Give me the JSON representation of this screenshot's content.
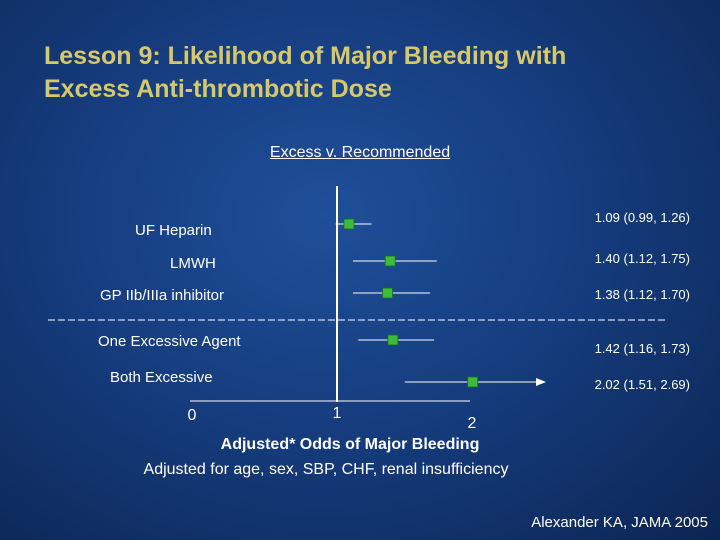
{
  "slide": {
    "title_line1": "Lesson 9:  Likelihood of Major Bleeding with",
    "title_line2": "Excess Anti-thrombotic Dose",
    "source": "Alexander KA, JAMA 2005"
  },
  "chart_data": {
    "type": "forest",
    "title": "Excess v. Recommended",
    "xlabel": "Adjusted* Odds of Major Bleeding",
    "footnote": "Adjusted for age, sex, SBP, CHF, renal insufficiency",
    "xlim": [
      0,
      2
    ],
    "ticks": [
      {
        "value": 0,
        "label": "0"
      },
      {
        "value": 1,
        "label": "1"
      },
      {
        "value": 2,
        "label": "2"
      }
    ],
    "reference_line": 1,
    "rows": [
      {
        "label": "UF Heparin",
        "or": 1.09,
        "low": 0.99,
        "high": 1.26,
        "ci_text": "1.09 (0.99, 1.26)"
      },
      {
        "label": "LMWH",
        "or": 1.4,
        "low": 1.12,
        "high": 1.75,
        "ci_text": "1.40 (1.12, 1.75)"
      },
      {
        "label": "GP IIb/IIIa inhibitor",
        "or": 1.38,
        "low": 1.12,
        "high": 1.7,
        "ci_text": "1.38 (1.12, 1.70)"
      },
      {
        "label": "One Excessive Agent",
        "or": 1.42,
        "low": 1.16,
        "high": 1.73,
        "ci_text": "1.42 (1.16, 1.73)"
      },
      {
        "label": "Both Excessive",
        "or": 2.02,
        "low": 1.51,
        "high": 2.69,
        "ci_text": "2.02 (1.51, 2.69)",
        "arrow": true
      }
    ],
    "colors": {
      "marker": "#3dbb3d",
      "line": "#ffffff",
      "title_text": "#d7c96a"
    }
  }
}
